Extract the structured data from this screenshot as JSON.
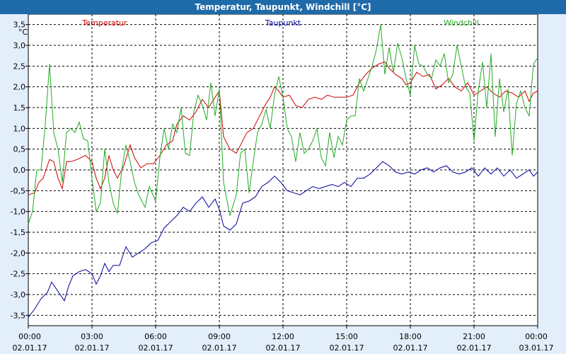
{
  "window": {
    "title": "Temperatur, Taupunkt, Windchill [°C]"
  },
  "colors": {
    "background": "#e3eefb",
    "plot_bg": "#ffffff",
    "titlebar": "#1f6aa8",
    "temperatur": "#cc0000",
    "taupunkt": "#000099",
    "windchill": "#22aa22"
  },
  "chart_data": {
    "type": "line",
    "title": "Temperatur, Taupunkt, Windchill [°C]",
    "ylabel": "°C",
    "ylim": [
      -3.75,
      3.75
    ],
    "xlim": [
      0,
      24
    ],
    "grid": true,
    "legend_position": "top",
    "y_ticks": [
      "3,5",
      "3,0",
      "2,5",
      "2,0",
      "1,5",
      "1,0",
      "0,5",
      "0,0",
      "-0,5",
      "-1,0",
      "-1,5",
      "-2,0",
      "-2,5",
      "-3,0",
      "-3,5"
    ],
    "y_tick_values": [
      3.5,
      3.0,
      2.5,
      2.0,
      1.5,
      1.0,
      0.5,
      0.0,
      -0.5,
      -1.0,
      -1.5,
      -2.0,
      -2.5,
      -3.0,
      -3.5
    ],
    "x_ticks": [
      {
        "time": "00:00",
        "date": "02.01.17",
        "hour": 0
      },
      {
        "time": "03:00",
        "date": "02.01.17",
        "hour": 3
      },
      {
        "time": "06:00",
        "date": "02.01.17",
        "hour": 6
      },
      {
        "time": "09:00",
        "date": "02.01.17",
        "hour": 9
      },
      {
        "time": "12:00",
        "date": "02.01.17",
        "hour": 12
      },
      {
        "time": "15:00",
        "date": "02.01.17",
        "hour": 15
      },
      {
        "time": "18:00",
        "date": "02.01.17",
        "hour": 18
      },
      {
        "time": "21:00",
        "date": "02.01.17",
        "hour": 21
      },
      {
        "time": "00:00",
        "date": "03.01.17",
        "hour": 24
      }
    ],
    "series": [
      {
        "name": "Temperatur",
        "color": "#cc0000",
        "points": [
          [
            0,
            -0.6
          ],
          [
            0.3,
            -0.55
          ],
          [
            0.5,
            -0.3
          ],
          [
            0.7,
            -0.2
          ],
          [
            0.9,
            0.1
          ],
          [
            1.0,
            0.25
          ],
          [
            1.2,
            0.2
          ],
          [
            1.4,
            -0.2
          ],
          [
            1.6,
            -0.45
          ],
          [
            1.8,
            0.2
          ],
          [
            2.0,
            0.2
          ],
          [
            2.3,
            0.25
          ],
          [
            2.7,
            0.35
          ],
          [
            3.0,
            0.2
          ],
          [
            3.2,
            -0.2
          ],
          [
            3.4,
            -0.45
          ],
          [
            3.6,
            -0.2
          ],
          [
            3.8,
            0.35
          ],
          [
            4.0,
            0.0
          ],
          [
            4.2,
            -0.2
          ],
          [
            4.5,
            0.1
          ],
          [
            4.8,
            0.6
          ],
          [
            5.0,
            0.3
          ],
          [
            5.3,
            0.05
          ],
          [
            5.6,
            0.15
          ],
          [
            5.9,
            0.15
          ],
          [
            6.2,
            0.35
          ],
          [
            6.5,
            0.6
          ],
          [
            6.8,
            0.7
          ],
          [
            7.0,
            1.1
          ],
          [
            7.3,
            1.3
          ],
          [
            7.6,
            1.2
          ],
          [
            7.9,
            1.4
          ],
          [
            8.2,
            1.7
          ],
          [
            8.5,
            1.5
          ],
          [
            8.8,
            1.75
          ],
          [
            9.0,
            1.9
          ],
          [
            9.2,
            0.8
          ],
          [
            9.5,
            0.5
          ],
          [
            9.8,
            0.4
          ],
          [
            10.0,
            0.6
          ],
          [
            10.3,
            0.9
          ],
          [
            10.6,
            1.0
          ],
          [
            10.9,
            1.3
          ],
          [
            11.2,
            1.6
          ],
          [
            11.4,
            1.75
          ],
          [
            11.6,
            2.0
          ],
          [
            11.8,
            1.9
          ],
          [
            12.0,
            1.75
          ],
          [
            12.3,
            1.8
          ],
          [
            12.6,
            1.55
          ],
          [
            12.9,
            1.5
          ],
          [
            13.2,
            1.7
          ],
          [
            13.5,
            1.75
          ],
          [
            13.8,
            1.7
          ],
          [
            14.1,
            1.8
          ],
          [
            14.4,
            1.75
          ],
          [
            14.7,
            1.75
          ],
          [
            15.0,
            1.75
          ],
          [
            15.3,
            1.8
          ],
          [
            15.6,
            2.1
          ],
          [
            15.9,
            2.3
          ],
          [
            16.2,
            2.45
          ],
          [
            16.5,
            2.55
          ],
          [
            16.8,
            2.6
          ],
          [
            17.0,
            2.45
          ],
          [
            17.3,
            2.3
          ],
          [
            17.6,
            2.2
          ],
          [
            17.8,
            2.05
          ],
          [
            18.0,
            2.1
          ],
          [
            18.3,
            2.35
          ],
          [
            18.6,
            2.25
          ],
          [
            18.9,
            2.3
          ],
          [
            19.2,
            1.95
          ],
          [
            19.5,
            2.05
          ],
          [
            19.8,
            2.2
          ],
          [
            20.1,
            2.0
          ],
          [
            20.4,
            1.9
          ],
          [
            20.7,
            2.1
          ],
          [
            21.0,
            1.8
          ],
          [
            21.3,
            1.9
          ],
          [
            21.6,
            2.0
          ],
          [
            21.9,
            1.85
          ],
          [
            22.2,
            1.75
          ],
          [
            22.5,
            1.9
          ],
          [
            22.8,
            1.85
          ],
          [
            23.1,
            1.75
          ],
          [
            23.4,
            1.9
          ],
          [
            23.6,
            1.65
          ],
          [
            23.8,
            1.85
          ],
          [
            24.0,
            1.9
          ]
        ]
      },
      {
        "name": "Taupunkt",
        "color": "#000099",
        "points": [
          [
            0,
            -3.55
          ],
          [
            0.3,
            -3.35
          ],
          [
            0.6,
            -3.1
          ],
          [
            0.9,
            -2.95
          ],
          [
            1.1,
            -2.7
          ],
          [
            1.3,
            -2.85
          ],
          [
            1.5,
            -3.0
          ],
          [
            1.7,
            -3.15
          ],
          [
            1.9,
            -2.8
          ],
          [
            2.1,
            -2.55
          ],
          [
            2.4,
            -2.45
          ],
          [
            2.7,
            -2.4
          ],
          [
            3.0,
            -2.5
          ],
          [
            3.2,
            -2.75
          ],
          [
            3.4,
            -2.55
          ],
          [
            3.6,
            -2.25
          ],
          [
            3.8,
            -2.45
          ],
          [
            4.0,
            -2.3
          ],
          [
            4.3,
            -2.3
          ],
          [
            4.6,
            -1.85
          ],
          [
            4.9,
            -2.1
          ],
          [
            5.2,
            -2.0
          ],
          [
            5.5,
            -1.9
          ],
          [
            5.8,
            -1.75
          ],
          [
            6.1,
            -1.7
          ],
          [
            6.4,
            -1.4
          ],
          [
            6.7,
            -1.25
          ],
          [
            7.0,
            -1.1
          ],
          [
            7.3,
            -0.9
          ],
          [
            7.6,
            -1.0
          ],
          [
            7.9,
            -0.8
          ],
          [
            8.2,
            -0.65
          ],
          [
            8.5,
            -0.9
          ],
          [
            8.8,
            -0.7
          ],
          [
            9.0,
            -0.95
          ],
          [
            9.2,
            -1.35
          ],
          [
            9.5,
            -1.45
          ],
          [
            9.8,
            -1.3
          ],
          [
            10.1,
            -0.8
          ],
          [
            10.4,
            -0.75
          ],
          [
            10.7,
            -0.65
          ],
          [
            11.0,
            -0.4
          ],
          [
            11.3,
            -0.3
          ],
          [
            11.6,
            -0.15
          ],
          [
            11.9,
            -0.3
          ],
          [
            12.2,
            -0.5
          ],
          [
            12.5,
            -0.55
          ],
          [
            12.8,
            -0.6
          ],
          [
            13.1,
            -0.5
          ],
          [
            13.4,
            -0.4
          ],
          [
            13.7,
            -0.45
          ],
          [
            14.0,
            -0.4
          ],
          [
            14.3,
            -0.35
          ],
          [
            14.6,
            -0.4
          ],
          [
            14.9,
            -0.3
          ],
          [
            15.2,
            -0.4
          ],
          [
            15.5,
            -0.2
          ],
          [
            15.8,
            -0.2
          ],
          [
            16.1,
            -0.1
          ],
          [
            16.4,
            0.05
          ],
          [
            16.7,
            0.2
          ],
          [
            17.0,
            0.1
          ],
          [
            17.3,
            -0.05
          ],
          [
            17.6,
            -0.1
          ],
          [
            17.9,
            -0.05
          ],
          [
            18.2,
            -0.1
          ],
          [
            18.5,
            0.0
          ],
          [
            18.8,
            0.05
          ],
          [
            19.1,
            -0.05
          ],
          [
            19.4,
            0.05
          ],
          [
            19.7,
            0.1
          ],
          [
            20.0,
            -0.05
          ],
          [
            20.3,
            -0.1
          ],
          [
            20.6,
            -0.05
          ],
          [
            20.9,
            0.05
          ],
          [
            21.2,
            -0.15
          ],
          [
            21.5,
            0.05
          ],
          [
            21.8,
            -0.1
          ],
          [
            22.1,
            0.05
          ],
          [
            22.4,
            -0.15
          ],
          [
            22.7,
            0.0
          ],
          [
            23.0,
            -0.2
          ],
          [
            23.3,
            -0.1
          ],
          [
            23.6,
            0.0
          ],
          [
            23.8,
            -0.15
          ],
          [
            24.0,
            -0.05
          ]
        ]
      },
      {
        "name": "Windchill",
        "color": "#22aa22",
        "points": [
          [
            0,
            -1.3
          ],
          [
            0.2,
            -1.0
          ],
          [
            0.4,
            0.0
          ],
          [
            0.6,
            0.0
          ],
          [
            0.8,
            1.1
          ],
          [
            1.0,
            2.55
          ],
          [
            1.2,
            0.9
          ],
          [
            1.4,
            0.5
          ],
          [
            1.6,
            -0.3
          ],
          [
            1.8,
            0.9
          ],
          [
            2.0,
            1.0
          ],
          [
            2.2,
            0.9
          ],
          [
            2.4,
            1.15
          ],
          [
            2.6,
            0.75
          ],
          [
            2.8,
            0.7
          ],
          [
            3.0,
            -0.2
          ],
          [
            3.2,
            -1.0
          ],
          [
            3.4,
            -0.8
          ],
          [
            3.6,
            0.5
          ],
          [
            3.8,
            -0.3
          ],
          [
            4.0,
            -0.8
          ],
          [
            4.2,
            -1.05
          ],
          [
            4.4,
            0.0
          ],
          [
            4.6,
            0.6
          ],
          [
            4.8,
            0.2
          ],
          [
            5.0,
            -0.3
          ],
          [
            5.2,
            -0.6
          ],
          [
            5.5,
            -0.9
          ],
          [
            5.7,
            -0.4
          ],
          [
            6.0,
            -0.75
          ],
          [
            6.2,
            0.3
          ],
          [
            6.4,
            1.0
          ],
          [
            6.6,
            0.5
          ],
          [
            6.8,
            1.1
          ],
          [
            7.0,
            0.9
          ],
          [
            7.2,
            1.5
          ],
          [
            7.4,
            0.4
          ],
          [
            7.6,
            0.35
          ],
          [
            7.8,
            1.4
          ],
          [
            8.0,
            1.8
          ],
          [
            8.2,
            1.55
          ],
          [
            8.4,
            1.2
          ],
          [
            8.6,
            2.1
          ],
          [
            8.8,
            1.3
          ],
          [
            9.0,
            1.95
          ],
          [
            9.2,
            -0.3
          ],
          [
            9.5,
            -1.1
          ],
          [
            9.8,
            -0.6
          ],
          [
            10.0,
            0.4
          ],
          [
            10.2,
            0.5
          ],
          [
            10.4,
            -0.55
          ],
          [
            10.6,
            0.2
          ],
          [
            10.8,
            0.9
          ],
          [
            11.0,
            1.1
          ],
          [
            11.2,
            1.45
          ],
          [
            11.4,
            1.0
          ],
          [
            11.6,
            1.8
          ],
          [
            11.8,
            2.25
          ],
          [
            12.0,
            1.75
          ],
          [
            12.2,
            1.0
          ],
          [
            12.4,
            0.8
          ],
          [
            12.6,
            0.2
          ],
          [
            12.8,
            0.9
          ],
          [
            13.0,
            0.4
          ],
          [
            13.2,
            0.5
          ],
          [
            13.4,
            0.7
          ],
          [
            13.6,
            1.0
          ],
          [
            13.8,
            0.3
          ],
          [
            14.0,
            0.1
          ],
          [
            14.2,
            0.9
          ],
          [
            14.4,
            0.3
          ],
          [
            14.6,
            0.8
          ],
          [
            14.8,
            0.6
          ],
          [
            15.0,
            1.2
          ],
          [
            15.2,
            1.3
          ],
          [
            15.4,
            1.3
          ],
          [
            15.6,
            2.2
          ],
          [
            15.8,
            1.9
          ],
          [
            16.0,
            2.2
          ],
          [
            16.2,
            2.5
          ],
          [
            16.4,
            2.9
          ],
          [
            16.6,
            3.5
          ],
          [
            16.8,
            2.3
          ],
          [
            17.0,
            2.95
          ],
          [
            17.2,
            2.35
          ],
          [
            17.4,
            3.05
          ],
          [
            17.6,
            2.7
          ],
          [
            17.8,
            2.2
          ],
          [
            18.0,
            1.8
          ],
          [
            18.2,
            3.0
          ],
          [
            18.4,
            2.55
          ],
          [
            18.6,
            2.5
          ],
          [
            18.8,
            2.3
          ],
          [
            19.0,
            2.2
          ],
          [
            19.2,
            2.65
          ],
          [
            19.4,
            2.5
          ],
          [
            19.6,
            2.8
          ],
          [
            19.8,
            2.1
          ],
          [
            20.0,
            2.3
          ],
          [
            20.2,
            3.0
          ],
          [
            20.4,
            2.5
          ],
          [
            20.6,
            2.0
          ],
          [
            20.8,
            1.85
          ],
          [
            21.0,
            0.7
          ],
          [
            21.2,
            1.9
          ],
          [
            21.4,
            2.6
          ],
          [
            21.6,
            1.5
          ],
          [
            21.8,
            2.8
          ],
          [
            22.0,
            0.8
          ],
          [
            22.2,
            2.2
          ],
          [
            22.4,
            1.4
          ],
          [
            22.6,
            1.95
          ],
          [
            22.8,
            0.35
          ],
          [
            23.0,
            1.6
          ],
          [
            23.2,
            1.9
          ],
          [
            23.4,
            1.5
          ],
          [
            23.6,
            1.3
          ],
          [
            23.8,
            2.55
          ],
          [
            24.0,
            2.7
          ]
        ]
      }
    ]
  }
}
